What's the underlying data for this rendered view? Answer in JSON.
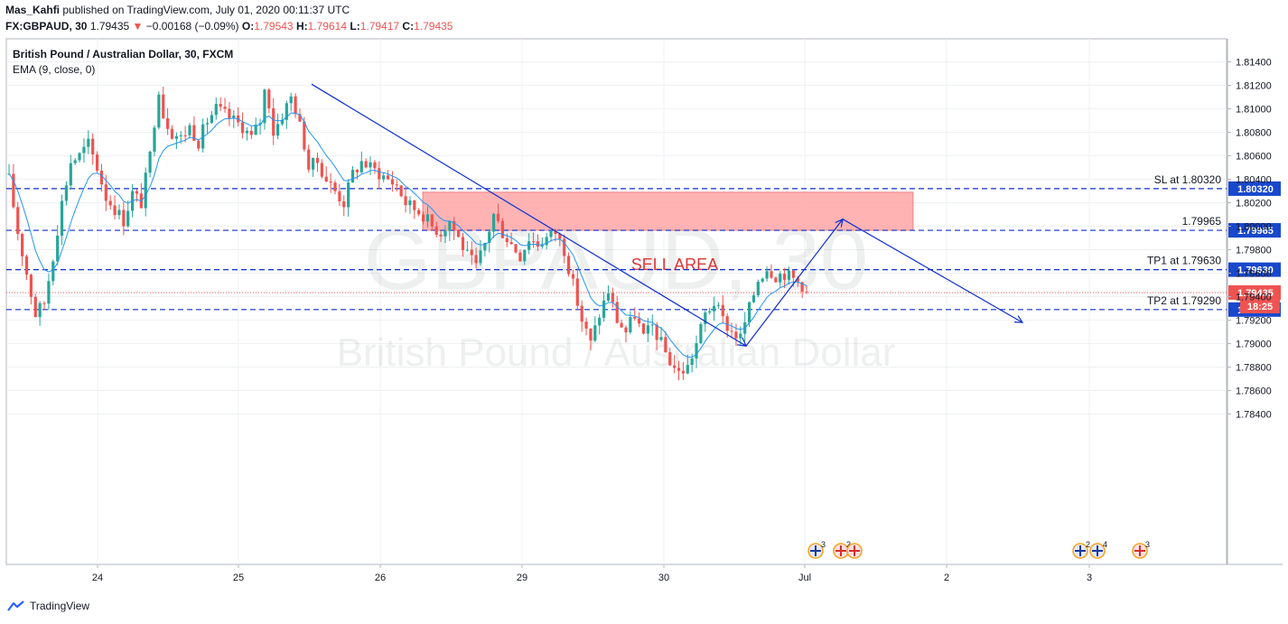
{
  "header": {
    "author": "Mas_Kahfi",
    "published_text": "published on TradingView.com, July 01, 2020 00:11:37 UTC",
    "symbol": "FX:GBPAUD, 30",
    "last": "1.79435",
    "change": "−0.00168 (−0.09%)",
    "o_label": "O:",
    "o": "1.79543",
    "h_label": "H:",
    "h": "1.79614",
    "l_label": "L:",
    "l": "1.79417",
    "c_label": "C:",
    "c": "1.79435"
  },
  "legend": {
    "title": "British Pound / Australian Dollar, 30, FXCM",
    "indicator": "EMA (9, close, 0)"
  },
  "watermark": {
    "big": "GBPAUD, 30",
    "sub": "British Pound / Australian Dollar"
  },
  "brand": "TradingView",
  "colors": {
    "up": "#26a69a",
    "down": "#ef5350",
    "ema": "#2196f3",
    "lines": "#0d2ecf",
    "sell_fill": "#ffa6a6",
    "sell_text": "#e03535"
  },
  "chart_data": {
    "type": "candlestick",
    "y_axis": {
      "ticks": [
        1.784,
        1.786,
        1.788,
        1.79,
        1.792,
        1.794,
        1.796,
        1.798,
        1.8,
        1.802,
        1.804,
        1.806,
        1.808,
        1.81,
        1.812,
        1.814
      ],
      "tick_labels": [
        "1.78400",
        "1.78600",
        "1.78800",
        "1.79000",
        "1.79200",
        "1.79400",
        "1.79600",
        "1.79800",
        "1.80000",
        "1.80200",
        "1.80400",
        "1.80600",
        "1.80800",
        "1.81000",
        "1.81200",
        "1.81400"
      ]
    },
    "x_axis": {
      "labels": [
        "24",
        "25",
        "26",
        "29",
        "30",
        "Jul",
        "2",
        "3"
      ]
    },
    "level_lines": [
      {
        "label": "SL at 1.80320",
        "value": 1.8032,
        "tag": "1.80320"
      },
      {
        "label": "1.79965",
        "value": 1.79965,
        "tag": "1.79965"
      },
      {
        "label": "TP1 at 1.79630",
        "value": 1.7963,
        "tag": "1.79630"
      },
      {
        "label": "TP2 at 1.79290",
        "value": 1.7929,
        "tag": "1.79290"
      }
    ],
    "current_price": {
      "value": 1.79435,
      "tag": "1.79435",
      "countdown": "18:25"
    },
    "sell_area": {
      "label": "SELL AREA",
      "low": 1.79965,
      "high": 1.8029,
      "x_start": "26",
      "x_end": "Jul 1 ~18:00"
    },
    "trend_line": {
      "from": {
        "x": "Jun 25 ~12:00",
        "y": 1.812
      },
      "to": {
        "x": "Jun 30 ~14:00",
        "y": 1.7898
      }
    },
    "projection_path": [
      {
        "x": "Jun 30 ~14:00",
        "y": 1.7898
      },
      {
        "x": "Jul 1 ~06:00",
        "y": 1.8006
      },
      {
        "x": "Jul 2 ~12:00",
        "y": 1.7918
      }
    ],
    "price_path": [
      [
        0,
        1.804
      ],
      [
        2,
        1.7995
      ],
      [
        4,
        1.796
      ],
      [
        6,
        1.7925
      ],
      [
        8,
        1.7935
      ],
      [
        10,
        1.7975
      ],
      [
        12,
        1.802
      ],
      [
        14,
        1.8055
      ],
      [
        16,
        1.806
      ],
      [
        18,
        1.807
      ],
      [
        20,
        1.805
      ],
      [
        22,
        1.8025
      ],
      [
        24,
        1.8015
      ],
      [
        26,
        1.8005
      ],
      [
        28,
        1.8028
      ],
      [
        30,
        1.802
      ],
      [
        32,
        1.806
      ],
      [
        33,
        1.809
      ],
      [
        34,
        1.8118
      ],
      [
        35,
        1.8095
      ],
      [
        37,
        1.808
      ],
      [
        39,
        1.8075
      ],
      [
        41,
        1.8085
      ],
      [
        43,
        1.8072
      ],
      [
        45,
        1.809
      ],
      [
        47,
        1.81
      ],
      [
        49,
        1.8095
      ],
      [
        51,
        1.809
      ],
      [
        53,
        1.8085
      ],
      [
        55,
        1.8075
      ],
      [
        57,
        1.809
      ],
      [
        58,
        1.8115
      ],
      [
        59,
        1.8105
      ],
      [
        60,
        1.808
      ],
      [
        62,
        1.8095
      ],
      [
        64,
        1.811
      ],
      [
        65,
        1.81
      ],
      [
        67,
        1.807
      ],
      [
        68,
        1.805
      ],
      [
        70,
        1.8055
      ],
      [
        72,
        1.804
      ],
      [
        74,
        1.803
      ],
      [
        76,
        1.802
      ],
      [
        78,
        1.8045
      ],
      [
        80,
        1.8055
      ],
      [
        82,
        1.805
      ],
      [
        84,
        1.8045
      ],
      [
        86,
        1.804
      ],
      [
        88,
        1.8035
      ],
      [
        90,
        1.802
      ],
      [
        92,
        1.8015
      ],
      [
        94,
        1.801
      ],
      [
        96,
        1.8
      ],
      [
        98,
        1.7995
      ],
      [
        100,
        1.8005
      ],
      [
        102,
        1.799
      ],
      [
        104,
        1.7975
      ],
      [
        106,
        1.7965
      ],
      [
        108,
        1.7985
      ],
      [
        110,
        1.801
      ],
      [
        112,
        1.7995
      ],
      [
        114,
        1.7985
      ],
      [
        116,
        1.7975
      ],
      [
        118,
        1.799
      ],
      [
        120,
        1.7985
      ],
      [
        122,
        1.799
      ],
      [
        124,
        1.7995
      ],
      [
        126,
        1.798
      ],
      [
        128,
        1.795
      ],
      [
        130,
        1.792
      ],
      [
        132,
        1.79
      ],
      [
        134,
        1.7925
      ],
      [
        136,
        1.7945
      ],
      [
        138,
        1.792
      ],
      [
        140,
        1.791
      ],
      [
        142,
        1.7925
      ],
      [
        144,
        1.7905
      ],
      [
        146,
        1.7915
      ],
      [
        148,
        1.79
      ],
      [
        150,
        1.7885
      ],
      [
        152,
        1.7875
      ],
      [
        154,
        1.788
      ],
      [
        156,
        1.79
      ],
      [
        158,
        1.7925
      ],
      [
        160,
        1.7935
      ],
      [
        162,
        1.792
      ],
      [
        164,
        1.791
      ],
      [
        166,
        1.7905
      ],
      [
        168,
        1.793
      ],
      [
        170,
        1.7955
      ],
      [
        172,
        1.7965
      ],
      [
        174,
        1.7958
      ],
      [
        176,
        1.796
      ],
      [
        178,
        1.7955
      ],
      [
        180,
        1.795
      ],
      [
        181,
        1.79435
      ]
    ]
  }
}
